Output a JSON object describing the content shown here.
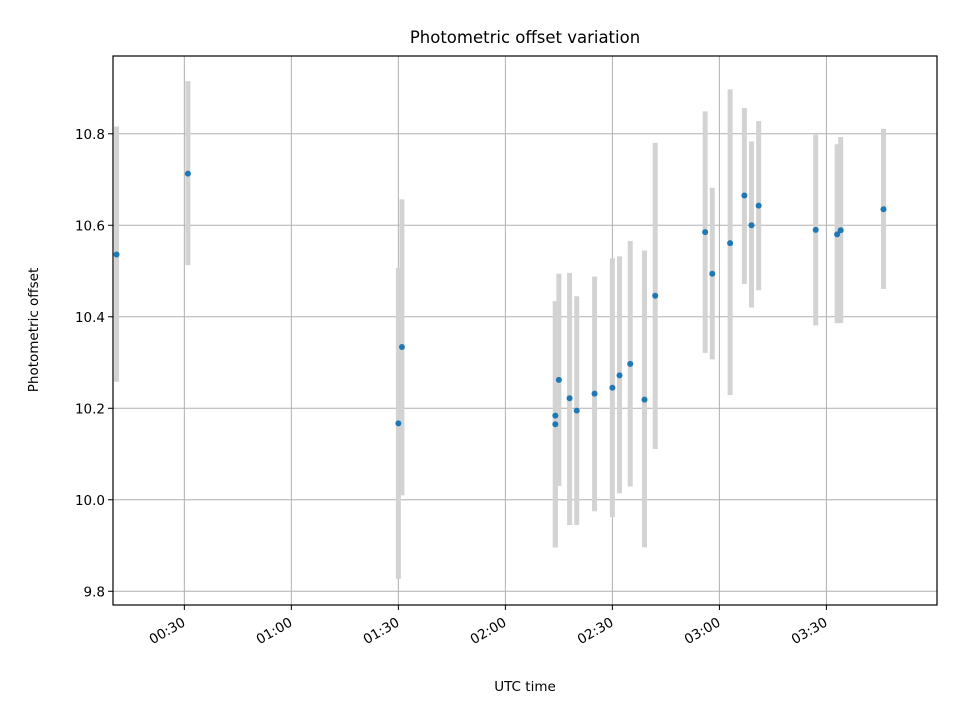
{
  "chart_data": {
    "type": "scatter",
    "title": "Photometric offset variation",
    "xlabel": "UTC time",
    "ylabel": "Photometric offset",
    "xlim": [
      "00:10",
      "04:01"
    ],
    "ylim": [
      9.77,
      10.97
    ],
    "x_ticks": [
      "00:30",
      "01:00",
      "01:30",
      "02:00",
      "02:30",
      "03:00",
      "03:30"
    ],
    "y_ticks": [
      "9.8",
      "10.0",
      "10.2",
      "10.4",
      "10.6",
      "10.8"
    ],
    "grid": true,
    "colors": {
      "point": "#1f77b4",
      "errorbar": "#d3d3d3",
      "grid": "#b0b0b0",
      "axis": "#000000"
    },
    "points": [
      {
        "time": "00:11",
        "offset": 10.536,
        "low": 10.258,
        "high": 10.816
      },
      {
        "time": "00:31",
        "offset": 10.713,
        "low": 10.513,
        "high": 10.915
      },
      {
        "time": "01:30",
        "offset": 10.167,
        "low": 9.827,
        "high": 10.507
      },
      {
        "time": "01:31",
        "offset": 10.334,
        "low": 10.01,
        "high": 10.657
      },
      {
        "time": "02:14",
        "offset": 10.184,
        "low": 9.896,
        "high": 10.434
      },
      {
        "time": "02:14",
        "offset": 10.165,
        "low": 9.896,
        "high": 10.434
      },
      {
        "time": "02:15",
        "offset": 10.262,
        "low": 10.03,
        "high": 10.494
      },
      {
        "time": "02:18",
        "offset": 10.222,
        "low": 9.945,
        "high": 10.496
      },
      {
        "time": "02:20",
        "offset": 10.195,
        "low": 9.945,
        "high": 10.445
      },
      {
        "time": "02:25",
        "offset": 10.232,
        "low": 9.975,
        "high": 10.488
      },
      {
        "time": "02:30",
        "offset": 10.245,
        "low": 9.962,
        "high": 10.528
      },
      {
        "time": "02:32",
        "offset": 10.272,
        "low": 10.014,
        "high": 10.532
      },
      {
        "time": "02:35",
        "offset": 10.297,
        "low": 10.029,
        "high": 10.566
      },
      {
        "time": "02:39",
        "offset": 10.219,
        "low": 9.896,
        "high": 10.545
      },
      {
        "time": "02:42",
        "offset": 10.446,
        "low": 10.111,
        "high": 10.78
      },
      {
        "time": "02:56",
        "offset": 10.585,
        "low": 10.321,
        "high": 10.849
      },
      {
        "time": "02:58",
        "offset": 10.494,
        "low": 10.307,
        "high": 10.682
      },
      {
        "time": "03:03",
        "offset": 10.561,
        "low": 10.229,
        "high": 10.897
      },
      {
        "time": "03:07",
        "offset": 10.665,
        "low": 10.472,
        "high": 10.856
      },
      {
        "time": "03:09",
        "offset": 10.6,
        "low": 10.42,
        "high": 10.783
      },
      {
        "time": "03:11",
        "offset": 10.643,
        "low": 10.458,
        "high": 10.828
      },
      {
        "time": "03:27",
        "offset": 10.59,
        "low": 10.381,
        "high": 10.798
      },
      {
        "time": "03:33",
        "offset": 10.58,
        "low": 10.386,
        "high": 10.777
      },
      {
        "time": "03:34",
        "offset": 10.589,
        "low": 10.386,
        "high": 10.793
      },
      {
        "time": "03:46",
        "offset": 10.635,
        "low": 10.461,
        "high": 10.811
      }
    ]
  }
}
